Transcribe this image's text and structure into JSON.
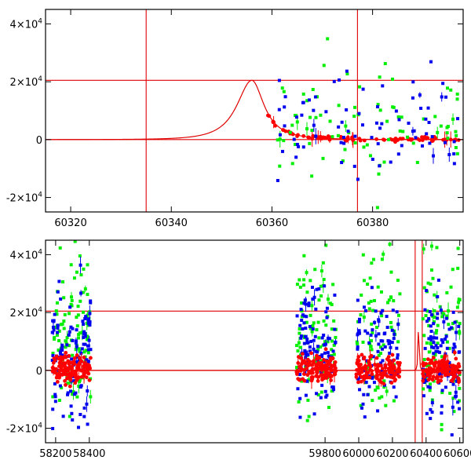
{
  "chart_data": [
    {
      "type": "scatter",
      "title": "",
      "xlabel": "",
      "ylabel": "",
      "xlim": [
        60315,
        60398
      ],
      "ylim": [
        -25000,
        45000
      ],
      "x_ticks": [
        60320,
        60340,
        60360,
        60380
      ],
      "x_tick_labels": [
        "60320",
        "60340",
        "60360",
        "60380"
      ],
      "y_ticks": [
        -20000,
        0,
        20000,
        40000
      ],
      "y_tick_labels": [
        {
          "base": "-2×10",
          "exp": "4"
        },
        {
          "base": "0",
          "exp": ""
        },
        {
          "base": "2×10",
          "exp": "4"
        },
        {
          "base": "4×10",
          "exp": "4"
        }
      ],
      "reference_lines": {
        "vertical": [
          60335,
          60377
        ],
        "horizontal": [
          0,
          20500
        ]
      },
      "model_curve": {
        "peak_x": 60356,
        "peak_y": 20500,
        "baseline": 0
      },
      "series": [
        {
          "color": "#ff0000",
          "x_range": [
            60359,
            60398
          ],
          "y_center": 0,
          "y_spread": 1500,
          "count": 90
        },
        {
          "color": "#00ee00",
          "x_range": [
            60361,
            60398
          ],
          "y_center": 6000,
          "y_spread": 20000,
          "count": 80
        },
        {
          "color": "#0000ee",
          "x_range": [
            60361,
            60398
          ],
          "y_center": 5000,
          "y_spread": 18000,
          "count": 80
        }
      ]
    },
    {
      "type": "scatter",
      "title": "",
      "xlabel": "",
      "ylabel": "",
      "xlim": [
        58140,
        60620
      ],
      "ylim": [
        -25000,
        45000
      ],
      "x_ticks": [
        58200,
        58400,
        59800,
        60000,
        60200,
        60400,
        60600
      ],
      "x_tick_labels": [
        "58200",
        "58400",
        "59800",
        "60000",
        "60200",
        "60400",
        "60600"
      ],
      "y_ticks": [
        -20000,
        0,
        20000,
        40000
      ],
      "y_tick_labels": [
        {
          "base": "-2×10",
          "exp": "4"
        },
        {
          "base": "0",
          "exp": ""
        },
        {
          "base": "2×10",
          "exp": "4"
        },
        {
          "base": "4×10",
          "exp": "4"
        }
      ],
      "reference_lines": {
        "vertical": [
          60335,
          60377
        ],
        "horizontal": [
          0,
          20500
        ]
      },
      "model_curve": {
        "peak_x": 60356,
        "peak_y": 20500,
        "baseline": 0
      },
      "seasons": [
        [
          58180,
          58410
        ],
        [
          59630,
          59865
        ],
        [
          59985,
          60245
        ],
        [
          60380,
          60600
        ]
      ],
      "series": [
        {
          "color": "#00ee00",
          "y_center": 12000,
          "y_spread": 28000,
          "count": 360
        },
        {
          "color": "#0000ee",
          "y_center": 6000,
          "y_spread": 22000,
          "count": 420
        },
        {
          "color": "#ff0000",
          "y_center": 500,
          "y_spread": 4500,
          "count": 520
        }
      ]
    }
  ]
}
